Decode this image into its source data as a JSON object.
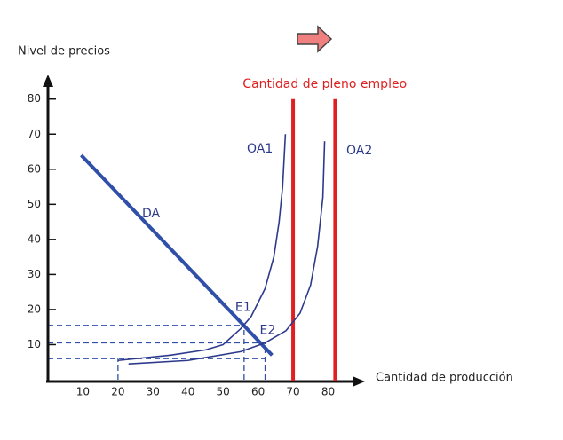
{
  "chart_data": {
    "type": "line",
    "ylabel": "Nivel de precios",
    "xlabel": "Cantidad de producción",
    "xlim": [
      0,
      89
    ],
    "ylim": [
      0,
      86
    ],
    "xticks": [
      10,
      20,
      30,
      40,
      50,
      60,
      70,
      80
    ],
    "yticks": [
      10,
      20,
      30,
      40,
      50,
      60,
      70,
      80
    ],
    "series": [
      {
        "name": "DA",
        "color": "#2f4fa8",
        "x": [
          9.5,
          64
        ],
        "y": [
          64,
          7
        ]
      },
      {
        "name": "OA1",
        "color": "#2d3a8c",
        "x": [
          20,
          35,
          45,
          50,
          55,
          58,
          62,
          64.5,
          66,
          67,
          67.8
        ],
        "y": [
          5.5,
          7,
          8.5,
          10,
          14.5,
          18,
          26,
          35,
          45,
          55,
          70
        ]
      },
      {
        "name": "OA2",
        "color": "#2d3a8c",
        "x": [
          23,
          40,
          55,
          62,
          68,
          72,
          75,
          77,
          78.5,
          79
        ],
        "y": [
          4.5,
          5.5,
          8,
          10.5,
          14,
          19,
          27,
          38,
          52,
          68
        ]
      }
    ],
    "guides": [
      {
        "x": [
          0,
          56
        ],
        "y": [
          15.5,
          15.5
        ]
      },
      {
        "x": [
          56,
          56
        ],
        "y": [
          0,
          15.5
        ]
      },
      {
        "x": [
          0,
          62
        ],
        "y": [
          10.5,
          10.5
        ]
      },
      {
        "x": [
          62,
          62
        ],
        "y": [
          0,
          10.5
        ]
      },
      {
        "x": [
          0,
          63
        ],
        "y": [
          6,
          6
        ]
      },
      {
        "x": [
          20,
          20
        ],
        "y": [
          0,
          6
        ]
      }
    ],
    "points": [
      {
        "label": "E1",
        "x": 56,
        "y": 15.5
      },
      {
        "label": "E2",
        "x": 62,
        "y": 10
      }
    ],
    "vlines": {
      "label": "Cantidad de pleno empleo",
      "color": "#e02020",
      "x": [
        70,
        82
      ],
      "ytop": 80
    }
  }
}
